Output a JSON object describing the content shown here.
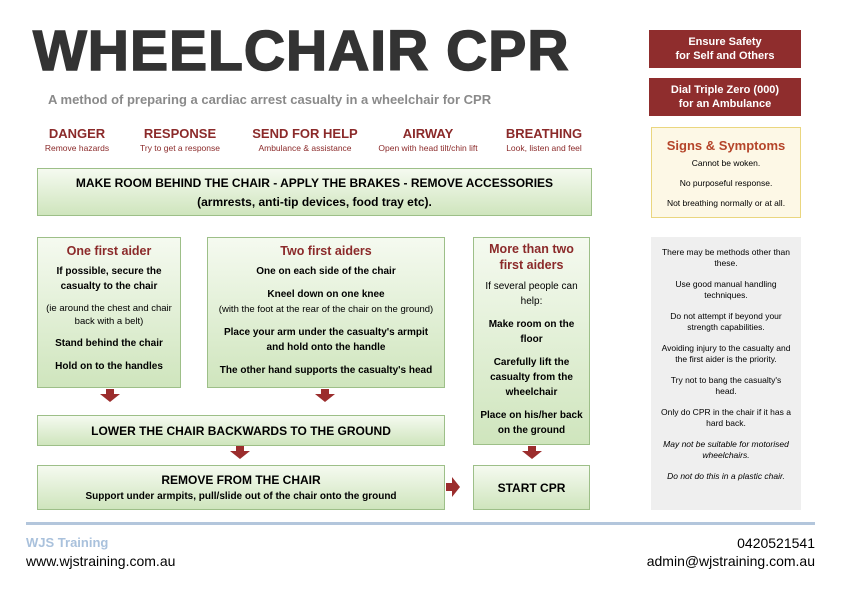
{
  "title": "WHEELCHAIR CPR",
  "subtitle": "A method of preparing a cardiac arrest casualty in a wheelchair for CPR",
  "drsab": [
    {
      "heading": "DANGER",
      "text": "Remove hazards"
    },
    {
      "heading": "RESPONSE",
      "text": "Try to get a response"
    },
    {
      "heading": "SEND FOR HELP",
      "text": "Ambulance & assistance"
    },
    {
      "heading": "AIRWAY",
      "text": "Open with head tilt/chin lift"
    },
    {
      "heading": "BREATHING",
      "text": "Look, listen and feel"
    }
  ],
  "alerts": [
    [
      "Ensure Safety",
      "for Self and Others"
    ],
    [
      "Dial Triple Zero (000)",
      "for an Ambulance"
    ]
  ],
  "signs": {
    "heading": "Signs & Symptoms",
    "items": [
      "Cannot be woken.",
      "No purposeful response.",
      "Not breathing normally or at all."
    ]
  },
  "step1": [
    "MAKE ROOM BEHIND THE CHAIR - APPLY THE BRAKES - REMOVE ACCESSORIES",
    "(armrests, anti-tip devices, food tray etc)."
  ],
  "columns": [
    {
      "heading": "One first aider",
      "items": [
        "If possible, secure the casualty to the chair",
        "(ie around the chest and chair back with a belt)",
        "Stand behind the chair",
        "Hold on to the handles"
      ]
    },
    {
      "heading": "Two first aiders",
      "items": [
        "One on each side of the chair",
        "Kneel down on one knee",
        "(with the foot at the rear of the chair on the ground)",
        "Place your arm under the casualty's armpit and hold onto the handle",
        "The other hand supports the casualty's head"
      ]
    },
    {
      "heading": "More than two first aiders",
      "items": [
        "If several people can help:",
        "Make room on the floor",
        "Carefully lift the casualty from the wheelchair",
        "Place on his/her back on the ground"
      ]
    }
  ],
  "lower": "LOWER THE CHAIR BACKWARDS TO THE GROUND",
  "remove": {
    "heading": "REMOVE FROM THE CHAIR",
    "text": "Support under armpits, pull/slide out of the chair onto the ground"
  },
  "start": "START CPR",
  "notes": [
    "There may be methods other than these.",
    "Use good manual handling techniques.",
    "Do not attempt if beyond your strength capabilities.",
    "Avoiding injury to the casualty and the first aider is the priority.",
    "Try not to bang the casualty's head.",
    "Only do CPR in the chair if it has a hard back."
  ],
  "notes_italic": [
    "May not be suitable for motorised wheelchairs.",
    "Do not do this in a plastic chair."
  ],
  "footer": {
    "org": "WJS Training",
    "website": "www.wjstraining.com.au",
    "phone": "0420521541",
    "email": "admin@wjstraining.com.au"
  }
}
